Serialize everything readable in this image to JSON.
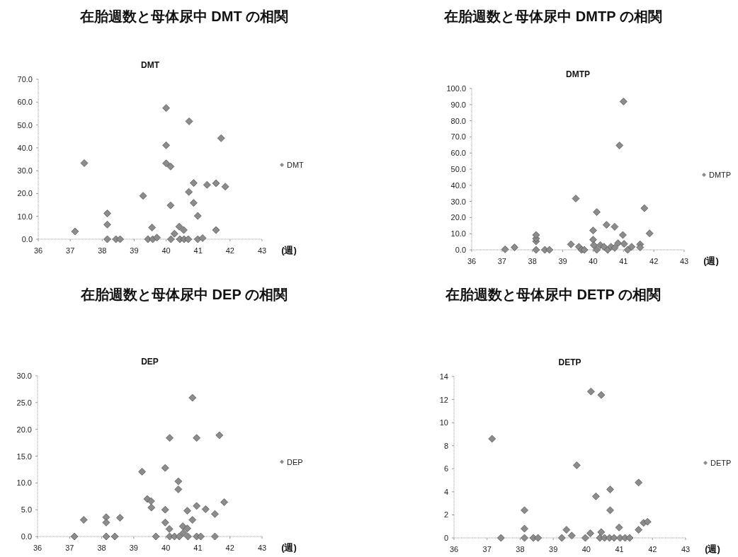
{
  "chart_data": [
    {
      "type": "scatter",
      "title": "在胎週数と母体尿中 DMT の相関",
      "subtitle": "DMT",
      "xlabel": "(週)",
      "marker": "diamond",
      "legend": "right",
      "xlim": [
        36,
        43
      ],
      "xticks": [
        36,
        37,
        38,
        39,
        40,
        41,
        42,
        43
      ],
      "ylim": [
        0,
        70
      ],
      "yticks": [
        {
          "value": 0,
          "label": "0.0"
        },
        {
          "value": 10,
          "label": "10.0"
        },
        {
          "value": 20,
          "label": "20.0"
        },
        {
          "value": 30,
          "label": "30.0"
        },
        {
          "value": 40,
          "label": "40.0"
        },
        {
          "value": 50,
          "label": "50.0"
        },
        {
          "value": 60,
          "label": "60.0"
        },
        {
          "value": 70,
          "label": "70.0"
        }
      ],
      "series": [
        {
          "name": "DMT",
          "color": "#8c8c8c",
          "x": [
            37.15,
            37.44,
            38.16,
            38.16,
            38.16,
            38.43,
            38.56,
            39.28,
            39.43,
            39.56,
            39.58,
            39.71,
            40.0,
            40.0,
            40.0,
            40.14,
            40.14,
            40.15,
            40.26,
            40.41,
            40.43,
            40.55,
            40.56,
            40.69,
            40.71,
            40.72,
            40.86,
            40.86,
            40.99,
            40.99,
            41.14,
            41.28,
            41.56,
            41.56,
            41.72,
            41.85
          ],
          "values": [
            3.4,
            33.3,
            11.3,
            6.4,
            0,
            0,
            0,
            19.0,
            0,
            5.1,
            0,
            0.7,
            57.4,
            41.1,
            33.2,
            31.8,
            14.8,
            0,
            2.4,
            5.5,
            0,
            4.0,
            0,
            0,
            20.7,
            51.6,
            24.6,
            15.9,
            10.2,
            0,
            0.5,
            23.8,
            4.0,
            24.5,
            44.2,
            23.0
          ]
        }
      ]
    },
    {
      "type": "scatter",
      "title": "在胎週数と母体尿中 DMTP の相関",
      "subtitle": "DMTP",
      "xlabel": "(週)",
      "marker": "diamond",
      "legend": "right",
      "xlim": [
        36,
        43
      ],
      "xticks": [
        36,
        37,
        38,
        39,
        40,
        41,
        42,
        43
      ],
      "ylim": [
        0,
        100
      ],
      "yticks": [
        {
          "value": 0,
          "label": "0.0"
        },
        {
          "value": 10,
          "label": "10.0"
        },
        {
          "value": 20,
          "label": "20.0"
        },
        {
          "value": 30,
          "label": "30.0"
        },
        {
          "value": 40,
          "label": "40.0"
        },
        {
          "value": 50,
          "label": "50.0"
        },
        {
          "value": 60,
          "label": "60.0"
        },
        {
          "value": 70,
          "label": "70.0"
        },
        {
          "value": 80,
          "label": "80.0"
        },
        {
          "value": 90,
          "label": "90.0"
        },
        {
          "value": 100,
          "label": "100.0"
        }
      ],
      "series": [
        {
          "name": "DMTP",
          "color": "#8c8c8c",
          "x": [
            37.1,
            37.41,
            38.12,
            38.12,
            38.12,
            38.12,
            38.41,
            38.56,
            39.27,
            39.43,
            39.53,
            39.62,
            39.71,
            40.0,
            40.0,
            40.02,
            40.12,
            40.12,
            40.24,
            40.36,
            40.44,
            40.48,
            40.59,
            40.71,
            40.71,
            40.82,
            40.87,
            40.98,
            41.0,
            41.02,
            41.14,
            41.27,
            41.55,
            41.55,
            41.69,
            41.86
          ],
          "values": [
            0.3,
            1.5,
            0,
            5.3,
            7.0,
            9.2,
            0,
            0,
            3.4,
            31.8,
            1.9,
            0,
            0,
            12.0,
            6.3,
            2.9,
            23.4,
            0,
            2.9,
            1.9,
            15.5,
            0,
            1.9,
            14.3,
            1.2,
            4.1,
            64.7,
            9.2,
            91.9,
            3.7,
            0,
            1.9,
            3.4,
            1.5,
            25.8,
            10.2
          ]
        }
      ]
    },
    {
      "type": "scatter",
      "title": "在胎週数と母体尿中 DEP の相関",
      "subtitle": "DEP",
      "xlabel": "(週)",
      "marker": "diamond",
      "legend": "right",
      "xlim": [
        36,
        43
      ],
      "xticks": [
        36,
        37,
        38,
        39,
        40,
        41,
        42,
        43
      ],
      "ylim": [
        0,
        30
      ],
      "yticks": [
        {
          "value": 0,
          "label": "0.0"
        },
        {
          "value": 5,
          "label": "5.0"
        },
        {
          "value": 10,
          "label": "10.0"
        },
        {
          "value": 15,
          "label": "15.0"
        },
        {
          "value": 20,
          "label": "20.0"
        },
        {
          "value": 25,
          "label": "25.0"
        },
        {
          "value": 30,
          "label": "30.0"
        }
      ],
      "series": [
        {
          "name": "DEP",
          "color": "#8c8c8c",
          "x": [
            37.15,
            37.44,
            38.14,
            38.14,
            38.14,
            38.41,
            38.57,
            39.26,
            39.42,
            39.54,
            39.55,
            39.69,
            39.98,
            39.98,
            39.98,
            40.11,
            40.12,
            40.12,
            40.27,
            40.39,
            40.39,
            40.42,
            40.53,
            40.55,
            40.67,
            40.67,
            40.69,
            40.83,
            40.83,
            40.96,
            40.96,
            40.96,
            41.09,
            41.24,
            41.53,
            41.53,
            41.67,
            41.82
          ],
          "values": [
            0,
            3.1,
            3.6,
            2.6,
            0,
            0,
            3.5,
            12.1,
            7.0,
            6.6,
            5.4,
            0,
            12.8,
            5.0,
            2.6,
            1.4,
            18.4,
            0,
            0,
            10.3,
            8.8,
            0,
            1.9,
            0.7,
            1.5,
            4.8,
            0,
            3.1,
            25.9,
            5.7,
            18.4,
            0,
            0,
            5.1,
            4.2,
            0,
            18.9,
            6.4
          ]
        }
      ]
    },
    {
      "type": "scatter",
      "title": "在胎週数と母体尿中 DETP の相関",
      "subtitle": "DETP",
      "xlabel": "(週)",
      "marker": "diamond",
      "legend": "right",
      "xlim": [
        36,
        43
      ],
      "xticks": [
        36,
        37,
        38,
        39,
        40,
        41,
        42,
        43
      ],
      "ylim": [
        0,
        14
      ],
      "yticks": [
        0,
        2,
        4,
        6,
        8,
        10,
        12,
        14
      ],
      "series": [
        {
          "name": "DETP",
          "color": "#8c8c8c",
          "x": [
            37.15,
            37.42,
            38.13,
            38.13,
            38.13,
            38.4,
            38.54,
            39.26,
            39.4,
            39.56,
            39.71,
            39.97,
            40.12,
            40.14,
            40.29,
            40.41,
            40.45,
            40.45,
            40.55,
            40.7,
            40.72,
            40.72,
            40.84,
            40.99,
            41.02,
            41.17,
            41.31,
            41.58,
            41.58,
            41.73,
            41.85
          ],
          "values": [
            8.6,
            0,
            2.4,
            0.8,
            0,
            0,
            0,
            0,
            0.7,
            0.2,
            6.3,
            0,
            0.4,
            12.7,
            3.6,
            0,
            12.4,
            0.5,
            0,
            0,
            4.2,
            2.4,
            0,
            0.9,
            0,
            0,
            0,
            0.7,
            4.8,
            1.3,
            1.4
          ]
        }
      ]
    }
  ]
}
